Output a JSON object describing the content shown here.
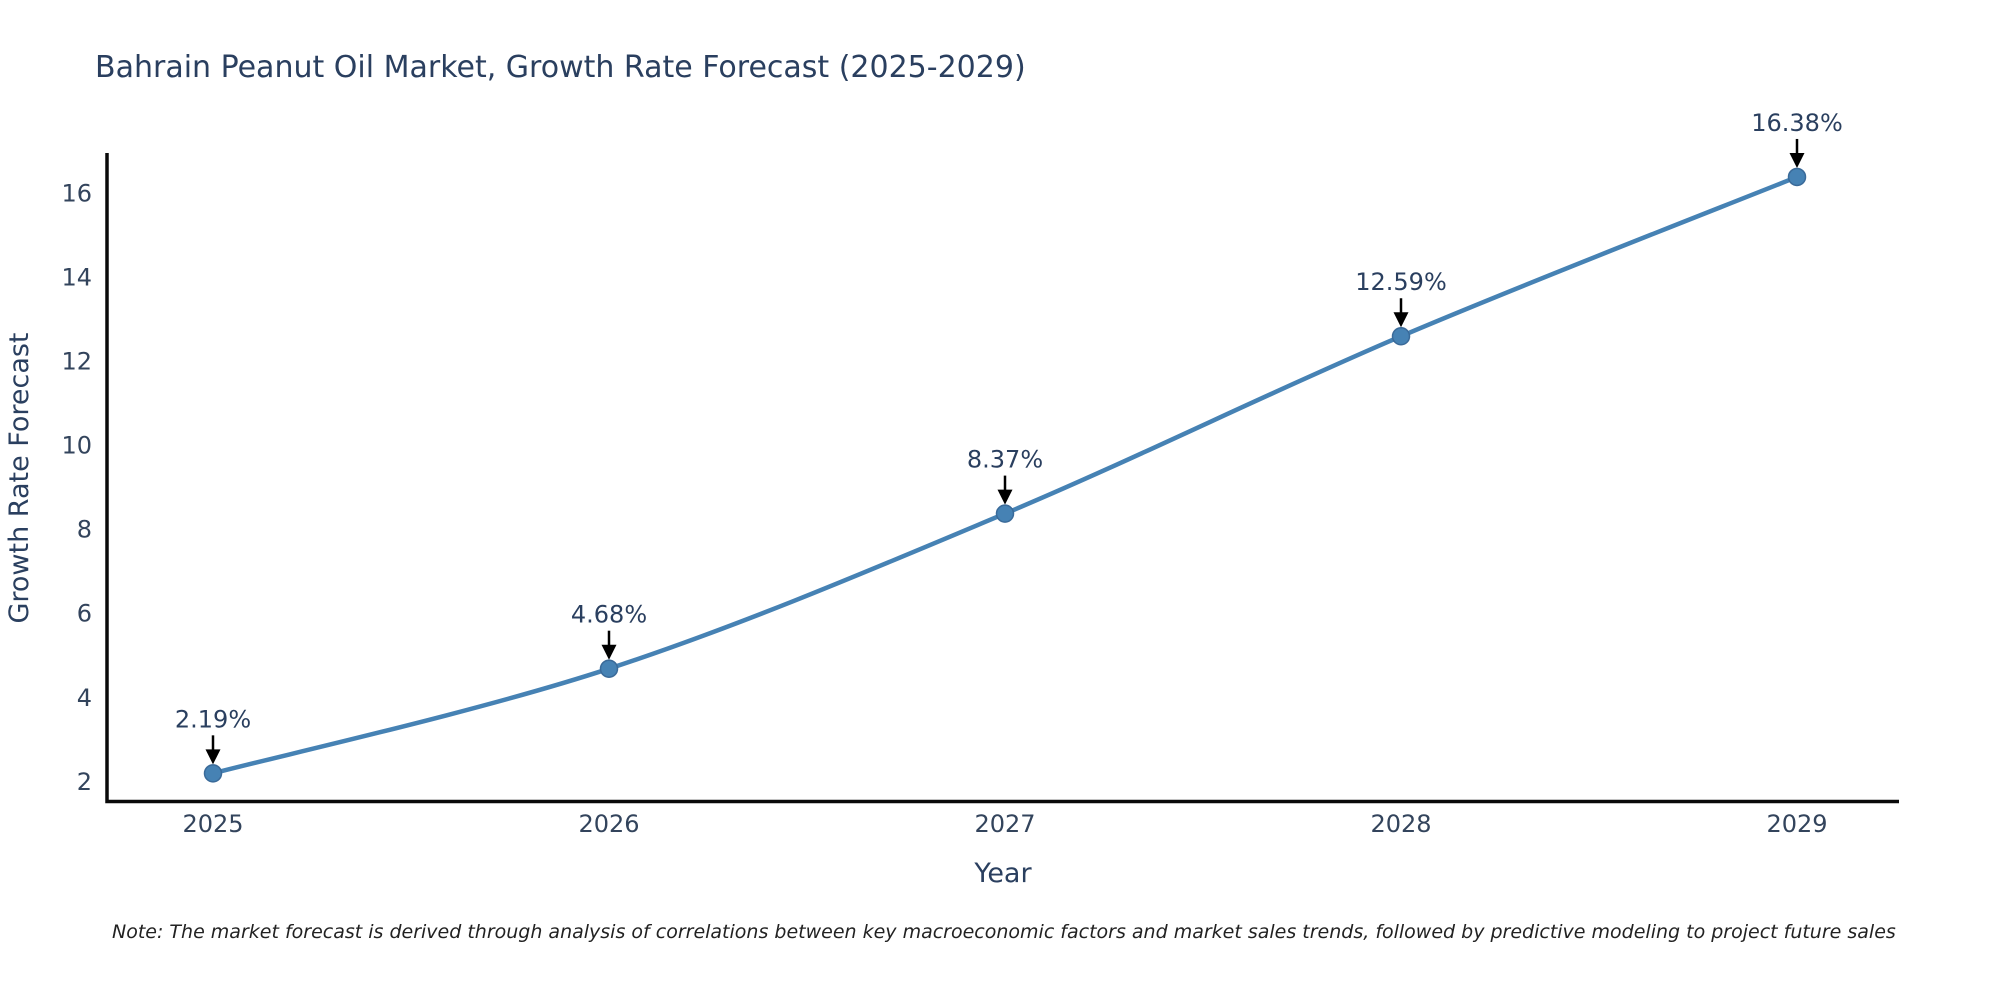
{
  "page": {
    "title": "Bahrain Peanut Oil Market, Growth Rate Forecast (2025-2029)",
    "note": "Note: The market forecast is derived through analysis of correlations between key macroeconomic factors and market sales trends, followed by predictive modeling to project future sales"
  },
  "chart_data": {
    "type": "line",
    "title": "Bahrain Peanut Oil Market, Growth Rate Forecast (2025-2029)",
    "xlabel": "Year",
    "ylabel": "Growth Rate Forecast",
    "categories": [
      "2025",
      "2026",
      "2027",
      "2028",
      "2029"
    ],
    "series": [
      {
        "name": "Growth Rate Forecast",
        "values": [
          2.19,
          4.68,
          8.37,
          12.59,
          16.38
        ]
      }
    ],
    "point_labels": [
      "2.19%",
      "4.68%",
      "8.37%",
      "12.59%",
      "16.38%"
    ],
    "y_ticks": [
      2,
      4,
      6,
      8,
      10,
      12,
      14,
      16
    ],
    "ylim": [
      1.52,
      16.95
    ],
    "grid": false,
    "legend_position": "none",
    "line_shape": "spline",
    "annotation_note": "Note: The market forecast is derived through analysis of correlations between key macroeconomic factors and market sales trends, followed by predictive modeling to project future sales",
    "colors": {
      "line": "#4682b4",
      "marker": "#4682b4",
      "marker_edge": "#3a6a99",
      "arrow": "#000000",
      "axis": "#0a0a0a",
      "title_text": "#2a3f5f",
      "tick_text": "#33445c",
      "note_text": "#222222"
    }
  }
}
